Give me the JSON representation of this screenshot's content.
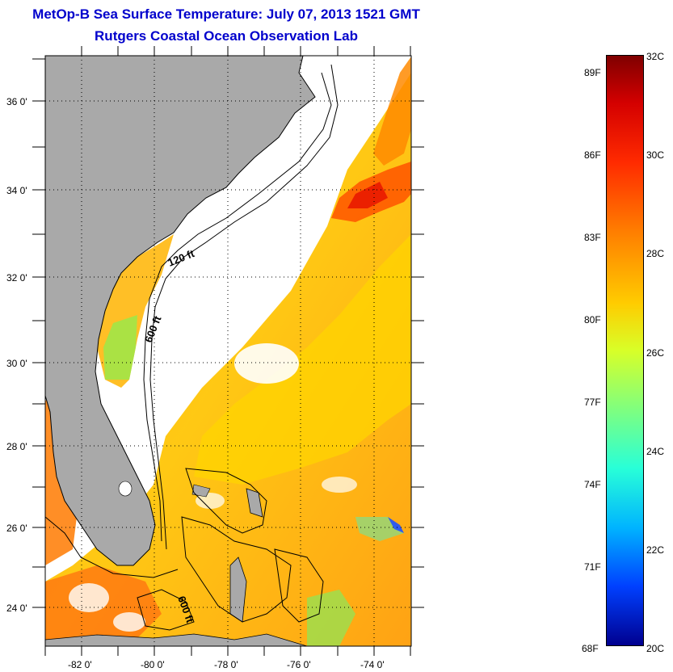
{
  "title": "MetOp-B Sea Surface Temperature:  July 07, 2013 1521 GMT",
  "subtitle": "Rutgers Coastal Ocean Observation Lab",
  "map": {
    "lat_labels": [
      "36 0'",
      "34 0'",
      "32 0'",
      "30 0'",
      "28 0'",
      "26 0'",
      "24 0'"
    ],
    "lon_labels": [
      "-82 0'",
      "-80 0'",
      "-78 0'",
      "-76 0'",
      "-74 0'"
    ],
    "contour_labels": [
      "120 ft",
      "600 ft",
      "600 ft"
    ],
    "colors": {
      "land": "#a9a9a9",
      "cloud_mask": "#ffffff",
      "coastline": "#000000"
    }
  },
  "colorbar": {
    "fahrenheit_labels": [
      "89F",
      "86F",
      "83F",
      "80F",
      "77F",
      "74F",
      "71F",
      "68F"
    ],
    "celsius_labels": [
      "32C",
      "30C",
      "28C",
      "26C",
      "24C",
      "22C",
      "20C"
    ],
    "range_c": [
      20,
      32
    ],
    "range_f": [
      68,
      89.6
    ]
  }
}
